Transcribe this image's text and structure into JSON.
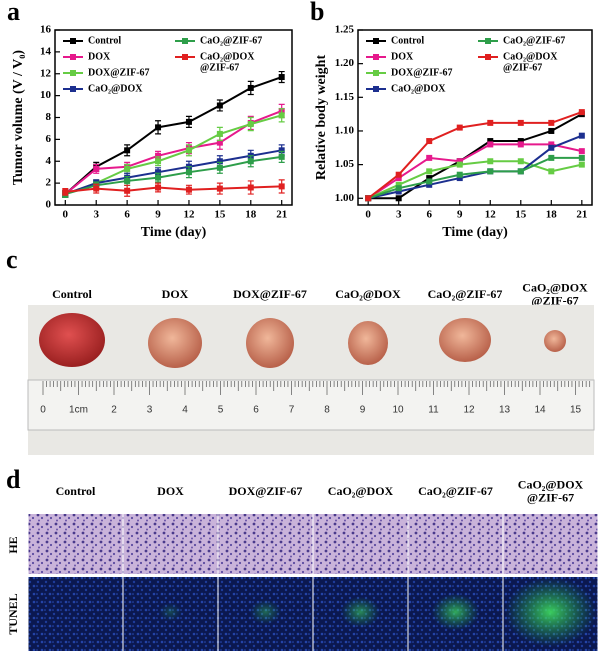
{
  "chart_data": [
    {
      "type": "line",
      "label": "a",
      "xlabel": "Time (day)",
      "ylabel": "Tumor volume (V / V₀)",
      "x": [
        0,
        3,
        6,
        9,
        12,
        15,
        18,
        21
      ],
      "xlim": [
        -1,
        22
      ],
      "xticks": [
        0,
        3,
        6,
        9,
        12,
        15,
        18,
        21
      ],
      "ylim": [
        0,
        16
      ],
      "yticks": [
        0,
        2,
        4,
        6,
        8,
        10,
        12,
        14,
        16
      ],
      "series": [
        {
          "name": "Control",
          "color": "#000000",
          "values": [
            1,
            3.5,
            5,
            7.1,
            7.6,
            9.1,
            10.7,
            11.7
          ],
          "errors": [
            0.3,
            0.4,
            0.5,
            0.6,
            0.5,
            0.5,
            0.6,
            0.5
          ]
        },
        {
          "name": "DOX",
          "color": "#e6198c",
          "values": [
            1,
            3.3,
            3.5,
            4.5,
            5.2,
            5.7,
            7.5,
            8.6
          ],
          "errors": [
            0.3,
            0.4,
            0.4,
            0.4,
            0.5,
            0.6,
            0.6,
            0.6
          ]
        },
        {
          "name": "DOX@ZIF-67",
          "color": "#66cc44",
          "values": [
            1,
            2,
            3.3,
            4,
            5,
            6.5,
            7.4,
            8.2
          ],
          "errors": [
            0.3,
            0.3,
            0.4,
            0.4,
            0.5,
            0.6,
            0.6,
            0.6
          ]
        },
        {
          "name": "CaO₂@DOX",
          "color": "#1c2f8f",
          "values": [
            1,
            2,
            2.5,
            3,
            3.5,
            4,
            4.5,
            5
          ],
          "errors": [
            0.3,
            0.3,
            0.4,
            0.4,
            0.5,
            0.5,
            0.5,
            0.5
          ]
        },
        {
          "name": "CaO₂@ZIF-67",
          "color": "#2e9e4a",
          "values": [
            1,
            1.8,
            2.2,
            2.5,
            3,
            3.4,
            4,
            4.4
          ],
          "errors": [
            0.3,
            0.3,
            0.4,
            0.4,
            0.5,
            0.5,
            0.5,
            0.5
          ]
        },
        {
          "name": "CaO₂@DOX@ZIF-67",
          "color": "#e02020",
          "values": [
            1.2,
            1.5,
            1.3,
            1.6,
            1.4,
            1.5,
            1.6,
            1.7
          ],
          "errors": [
            0.3,
            0.4,
            0.5,
            0.4,
            0.4,
            0.5,
            0.6,
            0.6
          ]
        }
      ]
    },
    {
      "type": "line",
      "label": "b",
      "xlabel": "Time (day)",
      "ylabel": "Relative body weight",
      "x": [
        0,
        3,
        6,
        9,
        12,
        15,
        18,
        21
      ],
      "xlim": [
        -1,
        22
      ],
      "xticks": [
        0,
        3,
        6,
        9,
        12,
        15,
        18,
        21
      ],
      "ylim": [
        0.99,
        1.25
      ],
      "yticks": [
        {
          "value": 1,
          "label": "1.00"
        },
        {
          "value": 1.05,
          "label": "1.05"
        },
        {
          "value": 1.1,
          "label": "1.10"
        },
        {
          "value": 1.15,
          "label": "1.15"
        },
        {
          "value": 1.2,
          "label": "1.20"
        },
        {
          "value": 1.25,
          "label": "1.25"
        }
      ],
      "series": [
        {
          "name": "Control",
          "color": "#000000",
          "values": [
            1,
            1,
            1.03,
            1.055,
            1.085,
            1.085,
            1.1,
            1.125
          ]
        },
        {
          "name": "DOX",
          "color": "#e6198c",
          "values": [
            1,
            1.03,
            1.06,
            1.055,
            1.08,
            1.08,
            1.08,
            1.07
          ]
        },
        {
          "name": "DOX@ZIF-67",
          "color": "#66cc44",
          "values": [
            1,
            1.02,
            1.04,
            1.05,
            1.055,
            1.055,
            1.04,
            1.05
          ]
        },
        {
          "name": "CaO₂@DOX",
          "color": "#1c2f8f",
          "values": [
            1,
            1.01,
            1.02,
            1.03,
            1.04,
            1.04,
            1.075,
            1.093
          ]
        },
        {
          "name": "CaO₂@ZIF-67",
          "color": "#2e9e4a",
          "values": [
            1,
            1.015,
            1.025,
            1.035,
            1.04,
            1.04,
            1.06,
            1.06
          ]
        },
        {
          "name": "CaO₂@DOX@ZIF-67",
          "color": "#e02020",
          "values": [
            1,
            1.035,
            1.085,
            1.105,
            1.112,
            1.112,
            1.112,
            1.128
          ]
        }
      ]
    }
  ],
  "panel_c": {
    "label": "c",
    "groups": [
      "Control",
      "DOX",
      "DOX@ZIF-67",
      "CaO₂@DOX",
      "CaO₂@ZIF-67",
      "CaO₂@DOX@ZIF-67"
    ],
    "ruler_labels": [
      "0",
      "1cm",
      "2",
      "3",
      "4",
      "5",
      "6",
      "7",
      "8",
      "9",
      "10",
      "11",
      "12",
      "13",
      "14",
      "15"
    ]
  },
  "panel_d": {
    "label": "d",
    "groups": [
      "Control",
      "DOX",
      "DOX@ZIF-67",
      "CaO₂@DOX",
      "CaO₂@ZIF-67",
      "CaO₂@DOX@ZIF-67"
    ],
    "rows": [
      "HE",
      "TUNEL"
    ]
  }
}
